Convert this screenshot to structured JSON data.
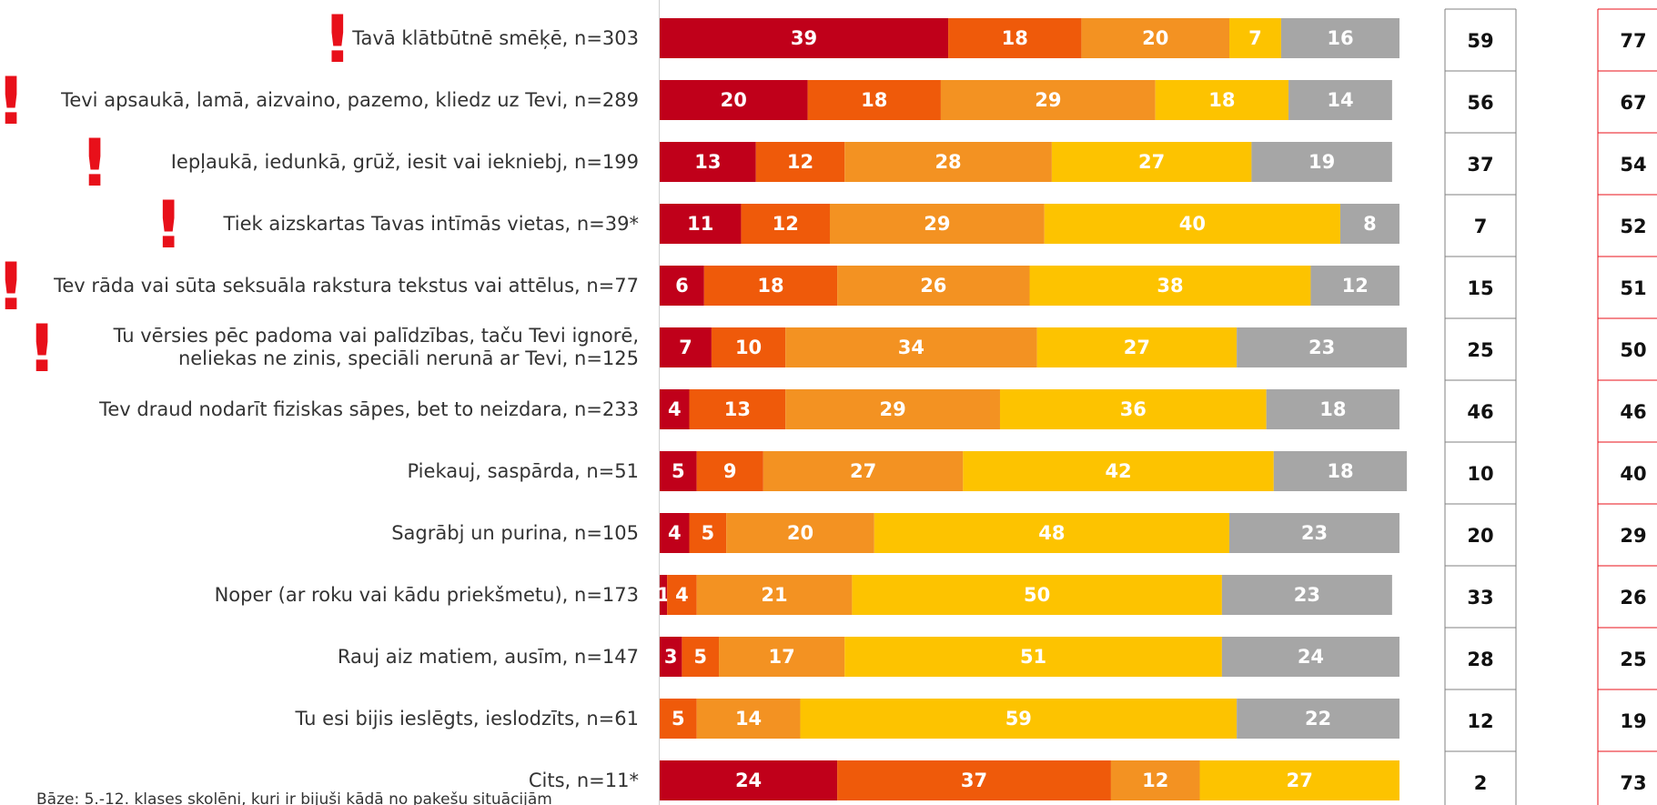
{
  "chart_data": {
    "type": "bar",
    "orientation": "horizontal-stacked-percent",
    "categories": [
      "Tavā klātbūtnē smēķē, n=303",
      "Tevi apsaukā, lamā, aizvaino, pazemo, kliedz uz Tevi, n=289",
      "Iepļaukā, iedunkā, grūž, iesit vai iekniebj, n=199",
      "Tiek aizskartas Tavas intīmās vietas, n=39*",
      "Tev rāda vai sūta seksuāla rakstura tekstus vai attēlus, n=77",
      "Tu vērsies pēc padoma vai palīdzības, taču Tevi ignorē, neliekas ne zinis, speciāli nerunā ar Tevi, n=125",
      "Tev draud nodarīt fiziskas sāpes, bet to neizdara, n=233",
      "Piekauj, saspārda, n=51",
      "Sagrābj un purina, n=105",
      "Noper (ar roku vai kādu priekšmetu), n=173",
      "Rauj aiz matiem, ausīm, n=147",
      "Tu esi bijis ieslēgts, ieslodzīts, n=61",
      "Cits, n=11*"
    ],
    "flagged": [
      true,
      true,
      true,
      true,
      true,
      true,
      false,
      false,
      false,
      false,
      false,
      false,
      false
    ],
    "flag_symbol": "!",
    "series": [
      {
        "color": "#c0001a",
        "values": [
          39,
          20,
          13,
          11,
          6,
          7,
          4,
          5,
          4,
          1,
          3,
          0,
          24
        ]
      },
      {
        "color": "#ef5a0a",
        "values": [
          18,
          18,
          12,
          12,
          18,
          10,
          13,
          9,
          5,
          4,
          5,
          5,
          37
        ]
      },
      {
        "color": "#f39222",
        "values": [
          20,
          29,
          28,
          29,
          26,
          34,
          29,
          27,
          20,
          21,
          17,
          14,
          12
        ]
      },
      {
        "color": "#fdc300",
        "values": [
          7,
          18,
          27,
          40,
          38,
          27,
          36,
          42,
          48,
          50,
          51,
          59,
          27
        ]
      },
      {
        "color": "#a6a6a6",
        "values": [
          16,
          14,
          19,
          8,
          12,
          23,
          18,
          18,
          23,
          23,
          24,
          22,
          0
        ]
      }
    ],
    "side_column_1": [
      59,
      56,
      37,
      7,
      15,
      25,
      46,
      10,
      20,
      33,
      28,
      12,
      2
    ],
    "side_column_2": [
      77,
      67,
      54,
      52,
      51,
      50,
      46,
      40,
      29,
      26,
      25,
      19,
      73
    ],
    "side_column_2_border": "#e8101a",
    "footnote": "Bāze: 5.-12. klases skolēni, kuri ir bijuši kādā no pakešu situācijām",
    "xlim": [
      0,
      100
    ],
    "grid": false,
    "legend": "none"
  }
}
